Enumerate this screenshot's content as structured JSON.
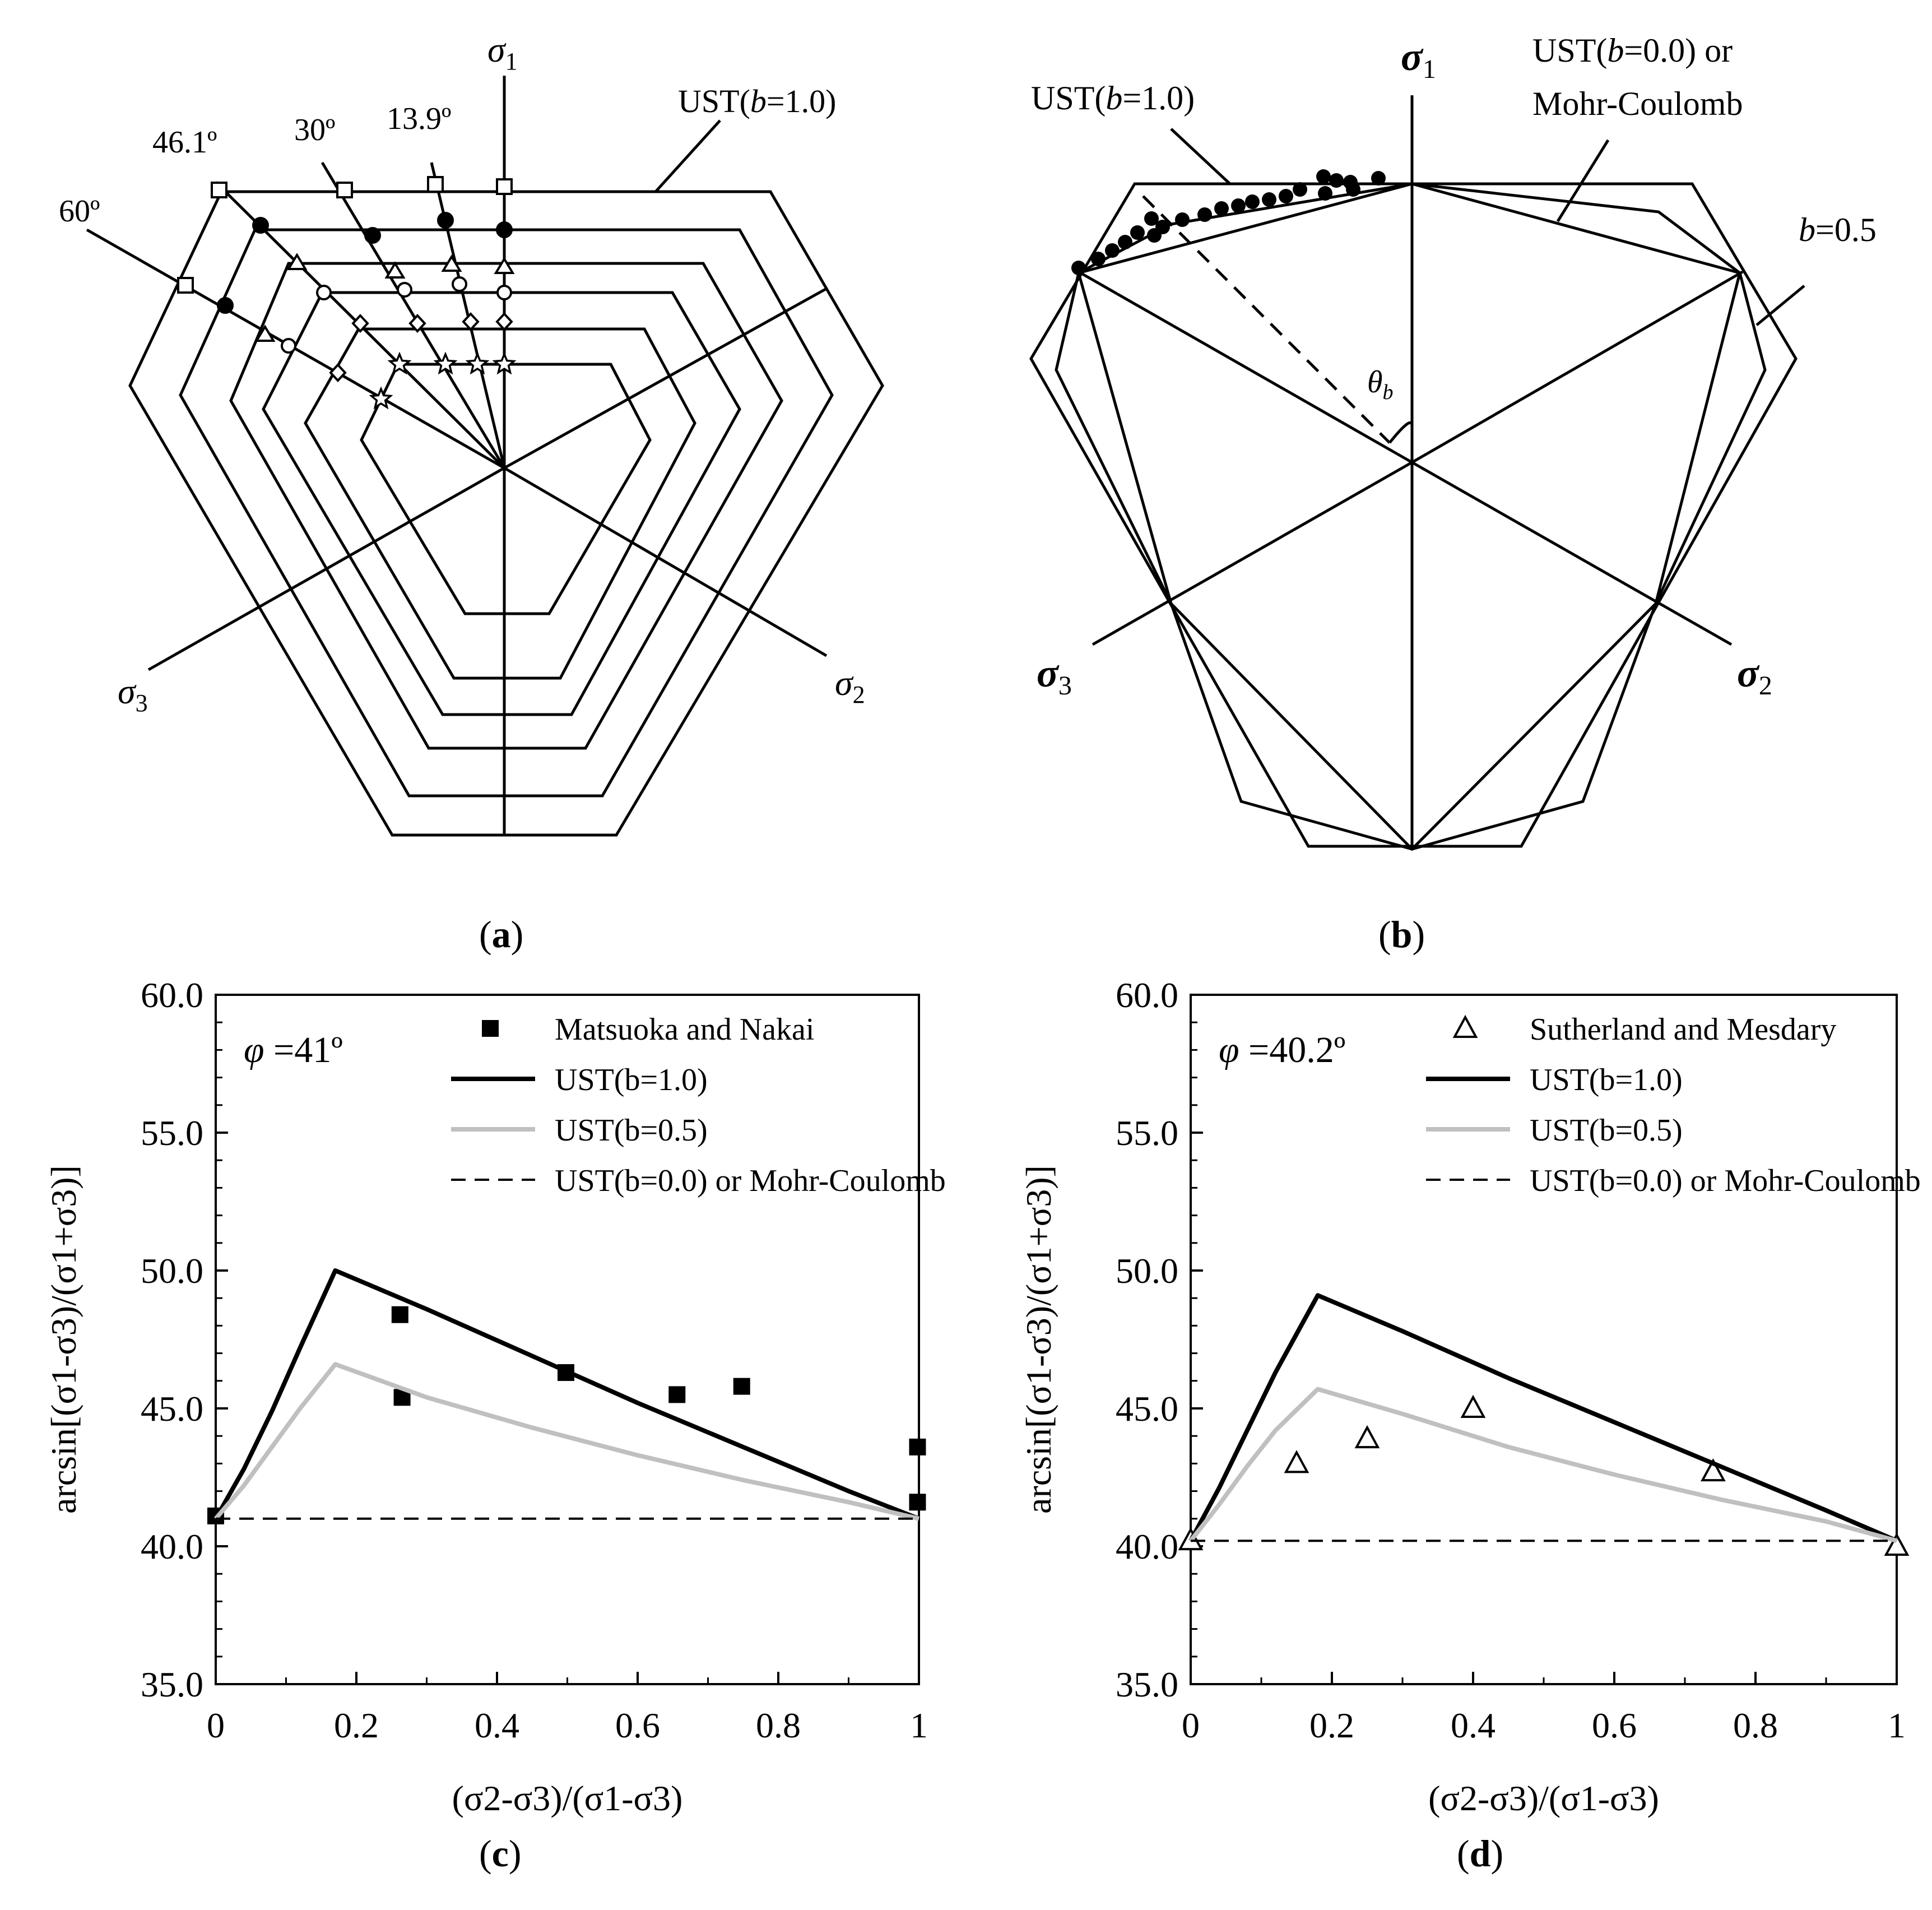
{
  "panels": {
    "a": {
      "label": "a",
      "axis_labels": {
        "s1": "σ",
        "s1_sub": "1",
        "s2": "σ",
        "s2_sub": "2",
        "s3": "σ",
        "s3_sub": "3"
      },
      "curve_label": "UST(b=1.0)",
      "curve_label_parts": [
        "UST(",
        "b",
        "=1.0)"
      ],
      "angle_labels": [
        "46.1º",
        "30º",
        "13.9º",
        "60º"
      ]
    },
    "b": {
      "label": "b",
      "axis_labels": {
        "s1": "σ",
        "s1_sub": "1",
        "s2": "σ",
        "s2_sub": "2",
        "s3": "σ",
        "s3_sub": "3"
      },
      "curve_label_parts": [
        "UST(",
        "b",
        "=1.0)"
      ],
      "mc_label_line1_parts": [
        "UST(",
        "b",
        "=0.0) or"
      ],
      "mc_label_line2": "Mohr-Coulomb",
      "b05_label_parts": [
        "b",
        "=0.5"
      ],
      "theta_label": "θ",
      "theta_sub": "b"
    },
    "c": {
      "label": "c",
      "phi_label": "φ =41º",
      "legend": [
        "Matsuoka and Nakai",
        "UST(b=1.0)",
        "UST(b=0.5)",
        "UST(b=0.0) or Mohr-Coulomb"
      ],
      "y_label": "arcsin[(σ1-σ3)/(σ1+σ3)]",
      "x_label": "(σ2-σ3)/(σ1-σ3)"
    },
    "d": {
      "label": "d",
      "phi_label": "φ =40.2º",
      "legend": [
        "Sutherland and Mesdary",
        "UST(b=1.0)",
        "UST(b=0.5)",
        "UST(b=0.0) or Mohr-Coulomb"
      ],
      "y_label": "arcsin[(σ1-σ3)/(σ1+σ3)]",
      "x_label": "(σ2-σ3)/(σ1-σ3)"
    }
  },
  "colors": {
    "black": "#000000",
    "gray": "#c0c0c0"
  },
  "chart_data": [
    {
      "type": "line",
      "panel": "c",
      "title": "φ =41º",
      "xlabel": "(σ2-σ3)/(σ1-σ3)",
      "ylabel": "arcsin[(σ1-σ3)/(σ1+σ3)]",
      "xlim": [
        0,
        1
      ],
      "ylim": [
        35,
        60
      ],
      "x_ticks": [
        "0",
        "0.2",
        "0.4",
        "0.6",
        "0.8",
        "1"
      ],
      "x_tick_values": [
        0,
        0.2,
        0.4,
        0.6,
        0.8,
        1
      ],
      "y_ticks": [
        "35.0",
        "40.0",
        "45.0",
        "50.0",
        "55.0",
        "60.0"
      ],
      "y_tick_values": [
        35,
        40,
        45,
        50,
        55,
        60
      ],
      "series": [
        {
          "name": "Matsuoka and Nakai",
          "kind": "scatter",
          "marker": "filled-square",
          "x": [
            0.0,
            0.262,
            0.265,
            0.498,
            0.656,
            0.748,
            0.998,
            0.998
          ],
          "y": [
            41.1,
            48.4,
            45.4,
            46.3,
            45.5,
            45.8,
            43.6,
            41.6
          ]
        },
        {
          "name": "UST(b=1.0)",
          "kind": "line",
          "color": "#000000",
          "x": [
            0.0,
            0.04,
            0.08,
            0.12,
            0.17,
            0.3,
            0.45,
            0.6,
            0.75,
            0.9,
            1.0
          ],
          "y": [
            41.0,
            42.8,
            44.9,
            47.2,
            50.0,
            48.6,
            46.9,
            45.2,
            43.6,
            42.0,
            41.0
          ]
        },
        {
          "name": "UST(b=0.5)",
          "kind": "line",
          "color": "#c0c0c0",
          "x": [
            0.0,
            0.04,
            0.08,
            0.12,
            0.17,
            0.3,
            0.45,
            0.6,
            0.75,
            0.9,
            1.0
          ],
          "y": [
            41.0,
            42.2,
            43.6,
            45.0,
            46.6,
            45.4,
            44.3,
            43.3,
            42.4,
            41.6,
            41.0
          ]
        },
        {
          "name": "UST(b=0.0) or Mohr-Coulomb",
          "kind": "dashed",
          "color": "#000000",
          "x": [
            0,
            1
          ],
          "y": [
            41.0,
            41.0
          ]
        }
      ]
    },
    {
      "type": "line",
      "panel": "d",
      "title": "φ =40.2º",
      "xlabel": "(σ2-σ3)/(σ1-σ3)",
      "ylabel": "arcsin[(σ1-σ3)/(σ1+σ3)]",
      "xlim": [
        0,
        1
      ],
      "ylim": [
        35,
        60
      ],
      "x_ticks": [
        "0",
        "0.2",
        "0.4",
        "0.6",
        "0.8",
        "1"
      ],
      "x_tick_values": [
        0,
        0.2,
        0.4,
        0.6,
        0.8,
        1
      ],
      "y_ticks": [
        "35.0",
        "40.0",
        "45.0",
        "50.0",
        "55.0",
        "60.0"
      ],
      "y_tick_values": [
        35,
        40,
        45,
        50,
        55,
        60
      ],
      "series": [
        {
          "name": "Sutherland and Mesdary",
          "kind": "scatter",
          "marker": "open-triangle",
          "x": [
            0.0,
            0.15,
            0.25,
            0.4,
            0.74,
            1.0
          ],
          "y": [
            40.2,
            43.0,
            43.9,
            45.0,
            42.7,
            40.0
          ]
        },
        {
          "name": "UST(b=1.0)",
          "kind": "line",
          "color": "#000000",
          "x": [
            0.0,
            0.04,
            0.08,
            0.12,
            0.18,
            0.3,
            0.45,
            0.6,
            0.75,
            0.9,
            1.0
          ],
          "y": [
            40.2,
            42.1,
            44.2,
            46.3,
            49.1,
            47.8,
            46.1,
            44.5,
            42.9,
            41.3,
            40.2
          ]
        },
        {
          "name": "UST(b=0.5)",
          "kind": "line",
          "color": "#c0c0c0",
          "x": [
            0.0,
            0.04,
            0.08,
            0.12,
            0.18,
            0.3,
            0.45,
            0.6,
            0.75,
            0.9,
            1.0
          ],
          "y": [
            40.2,
            41.5,
            42.9,
            44.2,
            45.7,
            44.8,
            43.6,
            42.6,
            41.7,
            40.9,
            40.2
          ]
        },
        {
          "name": "UST(b=0.0) or Mohr-Coulomb",
          "kind": "dashed",
          "color": "#000000",
          "x": [
            0,
            1
          ],
          "y": [
            40.2,
            40.2
          ]
        }
      ]
    }
  ]
}
